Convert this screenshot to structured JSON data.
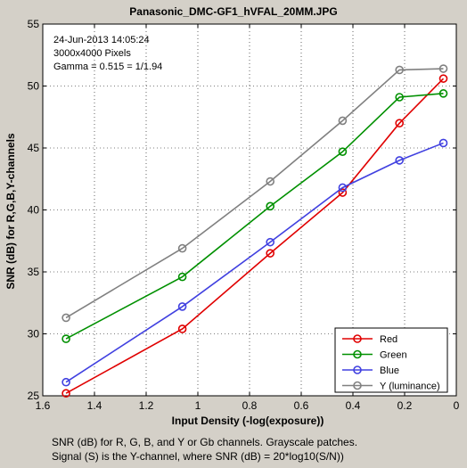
{
  "window_title": "Panasonic_DMC-GF1_hVFAL_20MM.JPG",
  "info_lines": [
    "24-Jun-2013 14:05:24",
    "3000x4000 Pixels",
    "Gamma = 0.515 = 1/1.94"
  ],
  "footer_lines": [
    "SNR (dB) for R, G, B, and Y or Gb channels.  Grayscale patches.",
    "Signal (S) is the Y-channel, where SNR (dB) = 20*log10(S/N))"
  ],
  "colors": {
    "background": "#d4d0c8",
    "plot": "#ffffff",
    "red": "#e00000",
    "green": "#009000",
    "blue": "#4040e0",
    "gray": "#808080"
  },
  "chart_data": {
    "type": "line",
    "title": "Panasonic_DMC-GF1_hVFAL_20MM.JPG",
    "xlabel": "Input Density (-log(exposure))",
    "ylabel": "SNR (dB) for R,G,B,Y-channels",
    "xlim": [
      1.6,
      0
    ],
    "ylim": [
      25,
      55
    ],
    "x_reversed": true,
    "x_ticks": [
      1.6,
      1.4,
      1.2,
      1,
      0.8,
      0.6,
      0.4,
      0.2,
      0
    ],
    "x_tick_labels": [
      "1.6",
      "1.4",
      "1.2",
      "1",
      "0.8",
      "0.6",
      "0.4",
      "0.2",
      "0"
    ],
    "y_ticks": [
      25,
      30,
      35,
      40,
      45,
      50,
      55
    ],
    "y_tick_labels": [
      "25",
      "30",
      "35",
      "40",
      "45",
      "50",
      "55"
    ],
    "grid": true,
    "legend_position": "bottom-right",
    "marker": "circle",
    "x": [
      1.51,
      1.06,
      0.72,
      0.44,
      0.22,
      0.05
    ],
    "series": [
      {
        "name": "Red",
        "color": "#e00000",
        "values": [
          25.2,
          30.4,
          36.5,
          41.4,
          47.0,
          50.6
        ]
      },
      {
        "name": "Green",
        "color": "#009000",
        "values": [
          29.6,
          34.6,
          40.3,
          44.7,
          49.1,
          49.4
        ]
      },
      {
        "name": "Blue",
        "color": "#4040e0",
        "values": [
          26.1,
          32.2,
          37.4,
          41.8,
          44.0,
          45.4
        ]
      },
      {
        "name": "Y (luminance)",
        "color": "#808080",
        "values": [
          31.3,
          36.9,
          42.3,
          47.2,
          51.3,
          51.4
        ]
      }
    ]
  }
}
